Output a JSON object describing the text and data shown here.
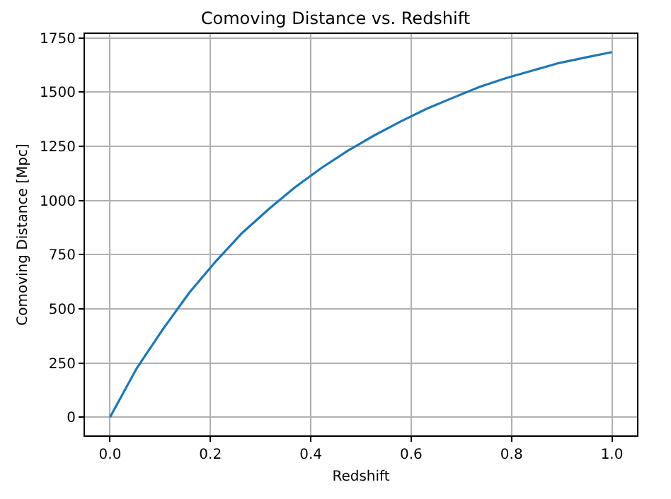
{
  "chart_data": {
    "type": "line",
    "title": "Comoving Distance vs. Redshift",
    "xlabel": "Redshift",
    "ylabel": "Comoving Distance [Mpc]",
    "x": [
      0,
      0.053,
      0.105,
      0.158,
      0.211,
      0.263,
      0.316,
      0.368,
      0.421,
      0.474,
      0.526,
      0.579,
      0.632,
      0.684,
      0.737,
      0.789,
      0.842,
      0.895,
      0.947,
      1.0
    ],
    "series": [
      {
        "color": "#1f77b4",
        "values": [
          0,
          225,
          405,
          575,
          720,
          850,
          960,
          1060,
          1150,
          1230,
          1300,
          1365,
          1425,
          1475,
          1525,
          1565,
          1600,
          1635,
          1660,
          1685
        ]
      }
    ],
    "xlim": [
      -0.05,
      1.05
    ],
    "ylim": [
      -84,
      1769
    ],
    "xticks": [
      {
        "value": 0,
        "label": "0.0"
      },
      {
        "value": 0.2,
        "label": "0.2"
      },
      {
        "value": 0.4,
        "label": "0.4"
      },
      {
        "value": 0.6,
        "label": "0.6"
      },
      {
        "value": 0.8,
        "label": "0.8"
      },
      {
        "value": 1,
        "label": "1.0"
      }
    ],
    "yticks": [
      0,
      250,
      500,
      750,
      1000,
      1250,
      1500,
      1750
    ],
    "grid": true,
    "line_style": "solid",
    "marker": "none"
  }
}
